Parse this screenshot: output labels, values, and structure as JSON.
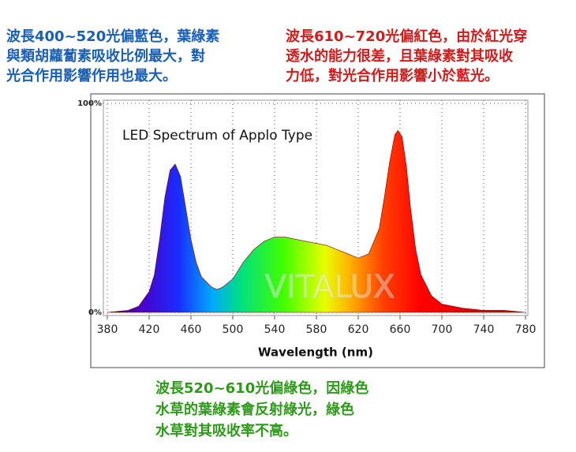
{
  "chart_data": {
    "type": "area",
    "title": "LED Spectrum of Applo Type",
    "xlabel": "Wavelength (nm)",
    "watermark": "VITALUX",
    "annotations": [
      {
        "color": "#1a5fb4",
        "lines": [
          "波長400~520光偏藍色，葉綠素",
          "與類胡蘿蔔素吸收比例最大，對",
          "光合作用影響作用也最大。"
        ]
      },
      {
        "color": "#d01c1c",
        "lines": [
          "波長610~720光偏紅色，由於紅光穿",
          "透水的能力很差，且葉綠素對其吸收",
          "力低，對光合作用影響小於藍光。"
        ]
      },
      {
        "color": "#2e9a1a",
        "lines": [
          "波長520~610光偏綠色，因綠色",
          "水草的葉綠素會反射綠光，綠色",
          "水草對其吸收率不高。"
        ]
      }
    ],
    "x": [
      380,
      400,
      410,
      420,
      425,
      430,
      435,
      440,
      445,
      450,
      455,
      460,
      465,
      470,
      480,
      485,
      490,
      500,
      510,
      520,
      530,
      540,
      550,
      560,
      570,
      580,
      590,
      600,
      610,
      620,
      630,
      640,
      645,
      650,
      655,
      658,
      662,
      666,
      670,
      675,
      680,
      690,
      700,
      720,
      740,
      760,
      780
    ],
    "values": [
      0,
      1,
      3,
      10,
      18,
      35,
      55,
      68,
      71,
      65,
      50,
      35,
      24,
      17,
      12,
      11,
      12,
      16,
      24,
      30,
      34,
      36,
      36,
      35,
      34,
      33,
      32,
      30,
      28,
      26,
      28,
      40,
      55,
      72,
      85,
      87,
      84,
      70,
      50,
      30,
      18,
      8,
      4,
      2,
      1,
      1,
      0
    ],
    "xlim": [
      380,
      780
    ],
    "xticks": [
      380,
      420,
      460,
      500,
      540,
      580,
      620,
      660,
      700,
      740,
      780
    ],
    "ylim": [
      0,
      100
    ],
    "yticks": [
      {
        "value": 0,
        "label": "0%"
      },
      {
        "value": 100,
        "label": "100%"
      }
    ],
    "grid": true
  }
}
